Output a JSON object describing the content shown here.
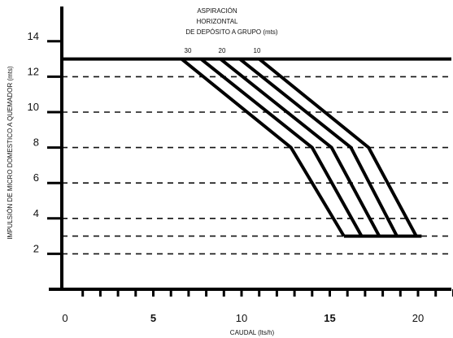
{
  "chart_data": {
    "type": "line",
    "xlabel": "CAUDAL (lts/h)",
    "ylabel": "IMPULSIÓN DE MICRO DOMESTICO A QUEMADOR (mts)",
    "xlim": [
      0,
      22
    ],
    "ylim": [
      0,
      15
    ],
    "x_ticks": [
      0,
      5,
      10,
      15,
      20
    ],
    "x_tick_labels": [
      "0",
      "5",
      "10",
      "15",
      "20"
    ],
    "y_ticks": [
      2,
      4,
      6,
      8,
      10,
      12,
      14
    ],
    "y_tick_labels": [
      "2",
      "4",
      "6",
      "8",
      "10",
      "12",
      "14"
    ],
    "x_bold_ticks": [
      5,
      15
    ],
    "dashed_grid_y": [
      2,
      3,
      4,
      6,
      8,
      10,
      12
    ],
    "reference_lines": [
      {
        "y": 13,
        "style": "solid",
        "x_from": -1,
        "x_to": 22
      },
      {
        "y": 3,
        "style": "solid",
        "x_from": 15.8,
        "x_to": 20.2
      }
    ],
    "annotation": {
      "lines": [
        "ASPIRACIÓN",
        "HORIZONTAL",
        "DE DEPÓSITO A GRUPO (mts)"
      ],
      "curve_labels": [
        "30",
        "20",
        "10"
      ]
    },
    "series": [
      {
        "values": [
          [
            6.6,
            13
          ],
          [
            12.8,
            8
          ],
          [
            15.8,
            3
          ]
        ]
      },
      {
        "values": [
          [
            7.7,
            13
          ],
          [
            14.0,
            8
          ],
          [
            16.8,
            3
          ]
        ]
      },
      {
        "values": [
          [
            8.8,
            13
          ],
          [
            15.1,
            8
          ],
          [
            17.8,
            3
          ]
        ]
      },
      {
        "values": [
          [
            9.9,
            13
          ],
          [
            16.2,
            8
          ],
          [
            18.8,
            3
          ]
        ]
      },
      {
        "values": [
          [
            11.0,
            13
          ],
          [
            17.2,
            8
          ],
          [
            19.9,
            3
          ]
        ]
      }
    ]
  }
}
